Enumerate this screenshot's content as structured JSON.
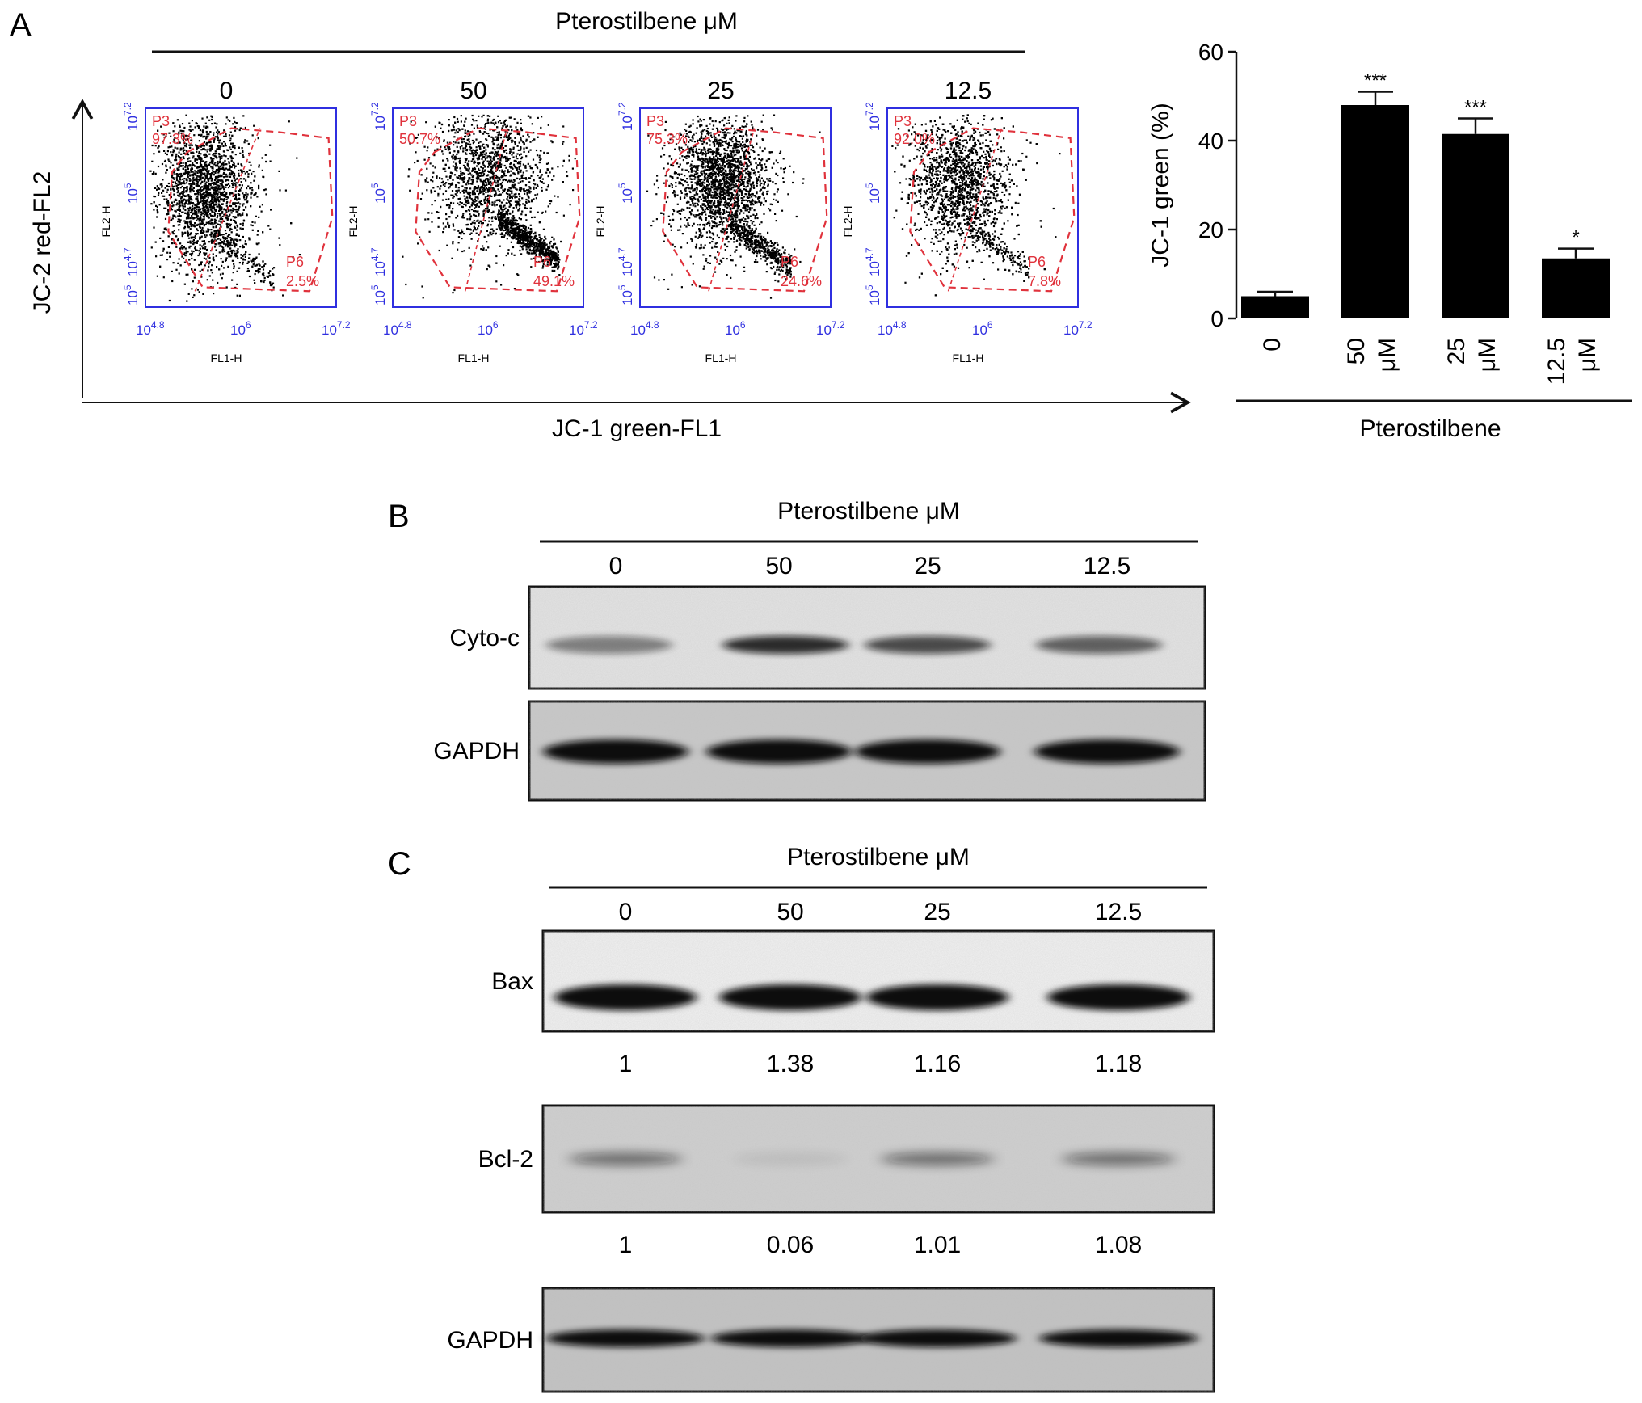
{
  "panel_a": {
    "letter": "A",
    "treatment_title": "Pterostilbene μM",
    "y_axis_label": "JC-2 red-FL2",
    "x_axis_label": "JC-1 green-FL1",
    "plots": [
      {
        "dose": "0",
        "p3_label": "P3",
        "p3_pct": "97.3%",
        "p6_label": "P6",
        "p6_pct": "2.5%",
        "centroid": [
          0.3,
          0.42
        ],
        "spread": [
          0.12,
          0.19
        ],
        "diag_frac": 0.06
      },
      {
        "dose": "50",
        "p3_label": "P3",
        "p3_pct": "50.7%",
        "p6_label": "P6",
        "p6_pct": "49.1%",
        "centroid": [
          0.5,
          0.33
        ],
        "spread": [
          0.15,
          0.17
        ],
        "diag_frac": 0.3
      },
      {
        "dose": "25",
        "p3_label": "P3",
        "p3_pct": "75.3%",
        "p6_label": "P6",
        "p6_pct": "24.6%",
        "centroid": [
          0.42,
          0.36
        ],
        "spread": [
          0.12,
          0.15
        ],
        "diag_frac": 0.18
      },
      {
        "dose": "12.5",
        "p3_label": "P3",
        "p3_pct": "92.0%",
        "p6_label": "P6",
        "p6_pct": "7.8%",
        "centroid": [
          0.37,
          0.37
        ],
        "spread": [
          0.13,
          0.16
        ],
        "diag_frac": 0.1
      }
    ],
    "flow_axes": {
      "x_axis_title": "FL1-H",
      "y_axis_title": "FL2-H",
      "x_ticks": [
        {
          "base": "10",
          "exp": "4.8"
        },
        {
          "base": "10",
          "exp": "6"
        },
        {
          "base": "10",
          "exp": "7.2"
        }
      ],
      "y_ticks": [
        {
          "base": "10",
          "exp": "7.2"
        },
        {
          "base": "10",
          "exp": "5"
        },
        {
          "base": "10",
          "exp": "4.7"
        },
        {
          "base": "10",
          "exp": "5"
        }
      ]
    },
    "colors": {
      "gate": "#e0323c",
      "flow_axis": "#2f2fe0",
      "dots": "#000000"
    }
  },
  "chart_data": {
    "type": "bar",
    "categories": [
      "0",
      "50\nμM",
      "25\nμM",
      "12.5\nμM"
    ],
    "values": [
      5,
      48,
      41.5,
      13.5
    ],
    "errors": [
      1,
      3,
      3.5,
      2.2
    ],
    "significance": [
      "",
      "***",
      "***",
      "*"
    ],
    "ylabel": "JC-1 green (%)",
    "xlabel": "Pterostilbene",
    "ylim": [
      0,
      60
    ],
    "yticks": [
      0,
      20,
      40,
      60
    ],
    "bar_color": "#000000"
  },
  "panel_b": {
    "letter": "B",
    "treatment_title": "Pterostilbene μM",
    "doses": [
      "0",
      "50",
      "25",
      "12.5"
    ],
    "blots": [
      {
        "label": "Cyto-c",
        "intensities": [
          0.45,
          0.85,
          0.7,
          0.6
        ]
      },
      {
        "label": "GAPDH",
        "intensities": [
          1.0,
          1.0,
          1.0,
          1.0
        ]
      }
    ]
  },
  "panel_c": {
    "letter": "C",
    "treatment_title": "Pterostilbene μM",
    "doses": [
      "0",
      "50",
      "25",
      "12.5"
    ],
    "blots": [
      {
        "label": "Bax",
        "intensities": [
          1.0,
          1.0,
          1.0,
          1.0
        ],
        "quant": [
          "1",
          "1.38",
          "1.16",
          "1.18"
        ]
      },
      {
        "label": "Bcl-2",
        "intensities": [
          0.5,
          0.08,
          0.5,
          0.5
        ],
        "quant": [
          "1",
          "0.06",
          "1.01",
          "1.08"
        ]
      },
      {
        "label": "GAPDH",
        "intensities": [
          1.0,
          1.0,
          1.0,
          1.0
        ]
      }
    ]
  }
}
